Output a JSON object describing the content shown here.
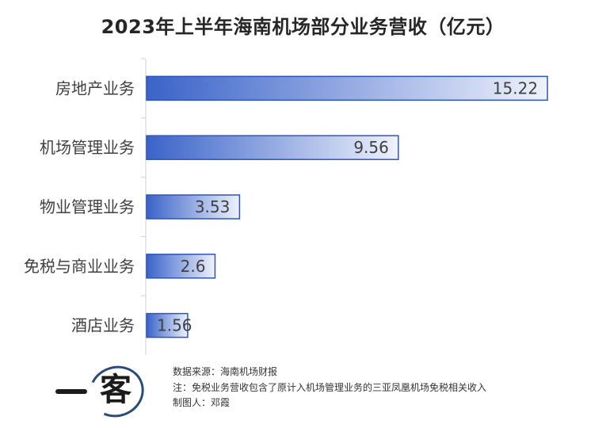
{
  "chart_data": {
    "type": "bar",
    "orientation": "horizontal",
    "title": "2023年上半年海南机场部分业务营收（亿元）",
    "categories": [
      "房地产业务",
      "机场管理业务",
      "物业管理业务",
      "免税与商业业务",
      "酒店业务"
    ],
    "values": [
      15.22,
      9.56,
      3.53,
      2.6,
      1.56
    ],
    "value_labels": [
      "15.22",
      "9.56",
      "3.53",
      "2.6",
      "1.56"
    ],
    "xlim": [
      0,
      16
    ],
    "grid": false,
    "legend": "none",
    "bar_gradient": [
      "#3a63c9",
      "#eef2fb"
    ],
    "bar_border": "#2f55b8"
  },
  "footer": {
    "source": "数据来源：海南机场财报",
    "note": "注：免税业务营收包含了原计入机场管理业务的三亚凤凰机场免税相关收入",
    "author": "制图人：邓霞"
  },
  "logo": {
    "mark": "客"
  }
}
